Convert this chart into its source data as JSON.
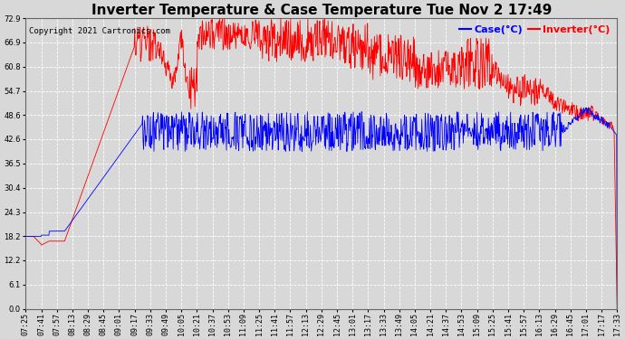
{
  "title": "Inverter Temperature & Case Temperature Tue Nov 2 17:49",
  "copyright": "Copyright 2021 Cartronics.com",
  "legend_labels": [
    "Case(°C)",
    "Inverter(°C)"
  ],
  "legend_colors": [
    "blue",
    "red"
  ],
  "y_ticks": [
    0.0,
    6.1,
    12.2,
    18.2,
    24.3,
    30.4,
    36.5,
    42.6,
    48.6,
    54.7,
    60.8,
    66.9,
    72.9
  ],
  "ylim": [
    0.0,
    72.9
  ],
  "background_color": "#d8d8d8",
  "grid_color": "#ffffff",
  "case_color": "blue",
  "inverter_color": "red",
  "x_labels": [
    "07:25",
    "07:41",
    "07:57",
    "08:13",
    "08:29",
    "08:45",
    "09:01",
    "09:17",
    "09:33",
    "09:49",
    "10:05",
    "10:21",
    "10:37",
    "10:53",
    "11:09",
    "11:25",
    "11:41",
    "11:57",
    "12:13",
    "12:29",
    "12:45",
    "13:01",
    "13:17",
    "13:33",
    "13:49",
    "14:05",
    "14:21",
    "14:37",
    "14:53",
    "15:09",
    "15:25",
    "15:41",
    "15:57",
    "16:13",
    "16:29",
    "16:45",
    "17:01",
    "17:17",
    "17:33"
  ],
  "title_fontsize": 11,
  "tick_fontsize": 6,
  "copyright_fontsize": 6.5,
  "legend_fontsize": 8,
  "figwidth": 6.9,
  "figheight": 3.75,
  "dpi": 100
}
